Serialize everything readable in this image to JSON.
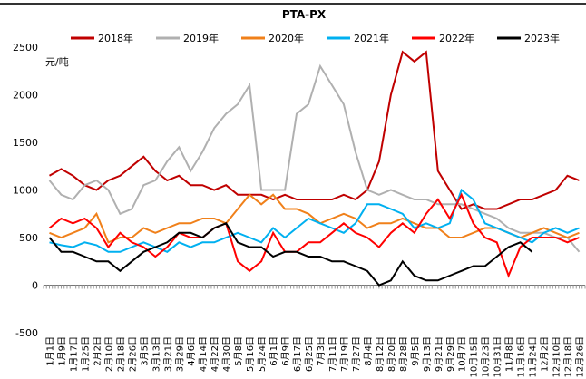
{
  "chart_data": {
    "type": "line",
    "title": "PTA-PX",
    "y_label": "元/吨",
    "categories": [
      "1月1日",
      "1月9日",
      "1月17日",
      "1月25日",
      "2月2日",
      "2月10日",
      "2月18日",
      "2月26日",
      "3月5日",
      "3月13日",
      "3月21日",
      "3月29日",
      "4月6日",
      "4月14日",
      "4月22日",
      "4月30日",
      "5月8日",
      "5月16日",
      "5月24日",
      "6月1日",
      "6月9日",
      "6月17日",
      "6月25日",
      "7月3日",
      "7月11日",
      "7月19日",
      "7月27日",
      "8月4日",
      "8月12日",
      "8月20日",
      "8月28日",
      "9月5日",
      "9月13日",
      "9月21日",
      "9月29日",
      "10月7日",
      "10月15日",
      "10月23日",
      "10月31日",
      "11月8日",
      "11月16日",
      "11月24日",
      "12月2日",
      "12月10日",
      "12月18日",
      "12月26日"
    ],
    "series": [
      {
        "name": "2018年",
        "color": "#c00000",
        "values": [
          1150,
          1220,
          1150,
          1050,
          1000,
          1100,
          1150,
          1250,
          1350,
          1200,
          1100,
          1150,
          1050,
          1050,
          1000,
          1050,
          950,
          950,
          950,
          900,
          950,
          900,
          900,
          900,
          900,
          950,
          900,
          1000,
          1300,
          2000,
          2450,
          2350,
          2450,
          1200,
          1000,
          800,
          850,
          800,
          800,
          850,
          900,
          900,
          950,
          1000,
          1150,
          1100
        ]
      },
      {
        "name": "2019年",
        "color": "#b0b0b0",
        "values": [
          1100,
          950,
          900,
          1050,
          1100,
          1000,
          750,
          800,
          1050,
          1100,
          1300,
          1450,
          1200,
          1400,
          1650,
          1800,
          1900,
          2100,
          1000,
          1000,
          1000,
          1800,
          1900,
          2300,
          2100,
          1900,
          1400,
          1000,
          950,
          1000,
          950,
          900,
          900,
          850,
          850,
          850,
          800,
          750,
          700,
          600,
          550,
          550,
          550,
          500,
          500,
          350
        ]
      },
      {
        "name": "2020年",
        "color": "#f0801a",
        "values": [
          550,
          500,
          550,
          600,
          750,
          450,
          500,
          500,
          600,
          550,
          600,
          650,
          650,
          700,
          700,
          650,
          800,
          950,
          850,
          950,
          800,
          800,
          750,
          650,
          700,
          750,
          700,
          600,
          650,
          650,
          700,
          650,
          600,
          600,
          500,
          500,
          550,
          600,
          600,
          550,
          500,
          550,
          600,
          550,
          500,
          550
        ]
      },
      {
        "name": "2021年",
        "color": "#00b0f0",
        "values": [
          450,
          420,
          400,
          450,
          420,
          350,
          350,
          400,
          450,
          400,
          350,
          450,
          400,
          450,
          450,
          500,
          550,
          500,
          450,
          600,
          500,
          600,
          700,
          650,
          600,
          550,
          650,
          850,
          850,
          800,
          750,
          600,
          650,
          600,
          650,
          1000,
          900,
          650,
          600,
          550,
          500,
          450,
          550,
          600,
          550,
          600
        ]
      },
      {
        "name": "2022年",
        "color": "#ff0000",
        "values": [
          600,
          700,
          650,
          700,
          600,
          400,
          550,
          450,
          400,
          300,
          400,
          550,
          500,
          500,
          600,
          650,
          250,
          150,
          250,
          550,
          350,
          350,
          450,
          450,
          550,
          650,
          550,
          500,
          400,
          550,
          650,
          550,
          750,
          900,
          700,
          950,
          650,
          500,
          450,
          100,
          400,
          500,
          500,
          500,
          450,
          500
        ]
      },
      {
        "name": "2023年",
        "color": "#000000",
        "values": [
          500,
          350,
          350,
          300,
          250,
          250,
          150,
          250,
          350,
          400,
          450,
          550,
          550,
          500,
          600,
          650,
          450,
          400,
          400,
          300,
          350,
          350,
          300,
          300,
          250,
          250,
          200,
          150,
          0,
          50,
          250,
          100,
          50,
          50,
          100,
          150,
          200,
          200,
          300,
          400,
          450,
          350,
          null,
          null,
          null,
          null
        ]
      }
    ],
    "ylim": [
      -500,
      2500
    ],
    "yticks": [
      -500,
      0,
      500,
      1000,
      1500,
      2000,
      2500
    ],
    "grid": false
  }
}
